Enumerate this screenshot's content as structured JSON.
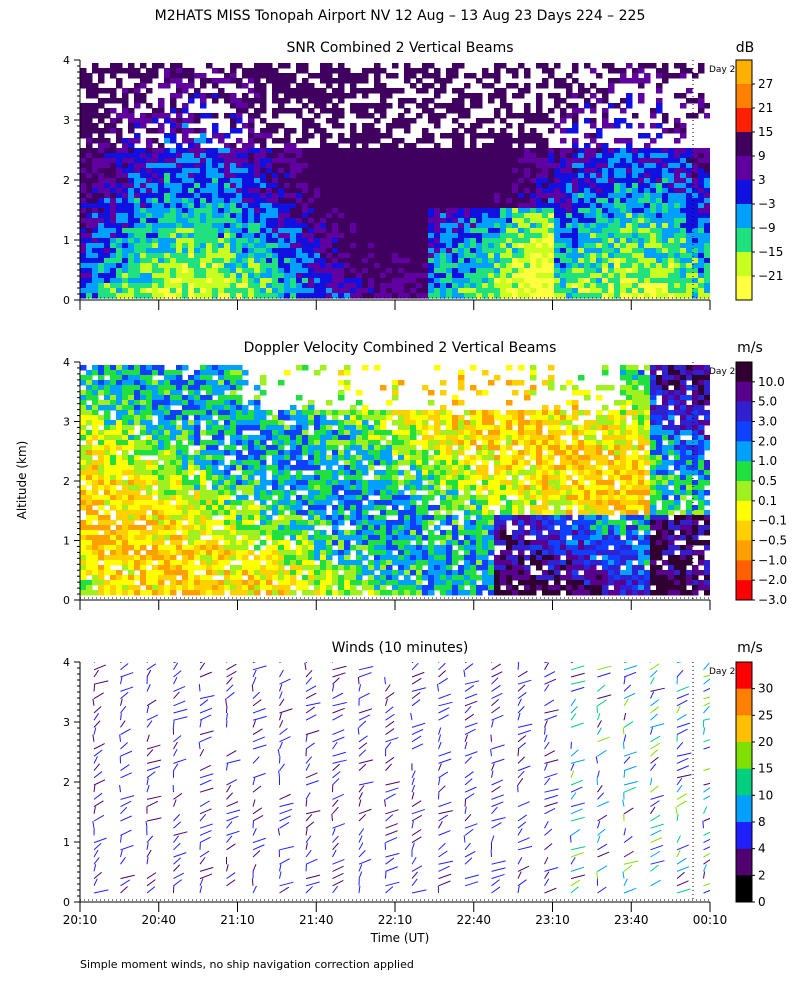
{
  "figure": {
    "title": "M2HATS MISS Tonopah Airport NV  12 Aug – 13 Aug 23 Days 224 – 225",
    "ylabel": "Altitude (km)",
    "xlabel": "Time (UT)",
    "footnote": "Simple moment winds, no ship navigation correction applied",
    "day_marker_label": "Day 2",
    "x_ticks": [
      "20:10",
      "20:40",
      "21:10",
      "21:40",
      "22:10",
      "22:40",
      "23:10",
      "23:40",
      "00:10"
    ],
    "y_ticks": [
      "0",
      "1",
      "2",
      "3",
      "4"
    ]
  },
  "chart_data": [
    {
      "type": "heatmap",
      "title": "SNR Combined 2 Vertical Beams",
      "units": "dB",
      "xlabel": "Time (UT)",
      "ylabel": "Altitude (km)",
      "x_range": [
        "20:10",
        "00:10"
      ],
      "ylim": [
        0,
        4
      ],
      "colorbar": {
        "labels": [
          "27",
          "21",
          "15",
          "9",
          "3",
          "−3",
          "−9",
          "−15",
          "−21"
        ],
        "colors": [
          "#ffb000",
          "#ff8000",
          "#ff2000",
          "#400060",
          "#6000a0",
          "#1010e0",
          "#00a0ff",
          "#20e080",
          "#c8ff20",
          "#ffff40"
        ]
      }
    },
    {
      "type": "heatmap",
      "title": "Doppler Velocity Combined 2 Vertical Beams",
      "units": "m/s",
      "xlabel": "Time (UT)",
      "ylabel": "Altitude (km)",
      "x_range": [
        "20:10",
        "00:10"
      ],
      "ylim": [
        0,
        4
      ],
      "colorbar": {
        "labels": [
          "10.0",
          "5.0",
          "3.0",
          "2.0",
          "1.0",
          "0.5",
          "0.1",
          "−0.1",
          "−0.5",
          "−1.0",
          "−2.0",
          "−3.0"
        ],
        "colors": [
          "#300030",
          "#5a0090",
          "#3020d0",
          "#1040ff",
          "#00a0ff",
          "#20e040",
          "#a0f020",
          "#ffff00",
          "#ffd000",
          "#ffa000",
          "#ff6000",
          "#ff0000"
        ]
      }
    },
    {
      "type": "barbs",
      "title": "Winds (10 minutes)",
      "units": "m/s",
      "xlabel": "Time (UT)",
      "ylabel": "Altitude (km)",
      "x_range": [
        "20:10",
        "00:10"
      ],
      "ylim": [
        0,
        4
      ],
      "colorbar": {
        "labels": [
          "30",
          "25",
          "20",
          "15",
          "10",
          "8",
          "4",
          "2",
          "0"
        ],
        "colors": [
          "#ff0000",
          "#ff8000",
          "#ffc000",
          "#80e000",
          "#00d080",
          "#00a0ff",
          "#2020ff",
          "#500070",
          "#000000"
        ]
      }
    }
  ]
}
